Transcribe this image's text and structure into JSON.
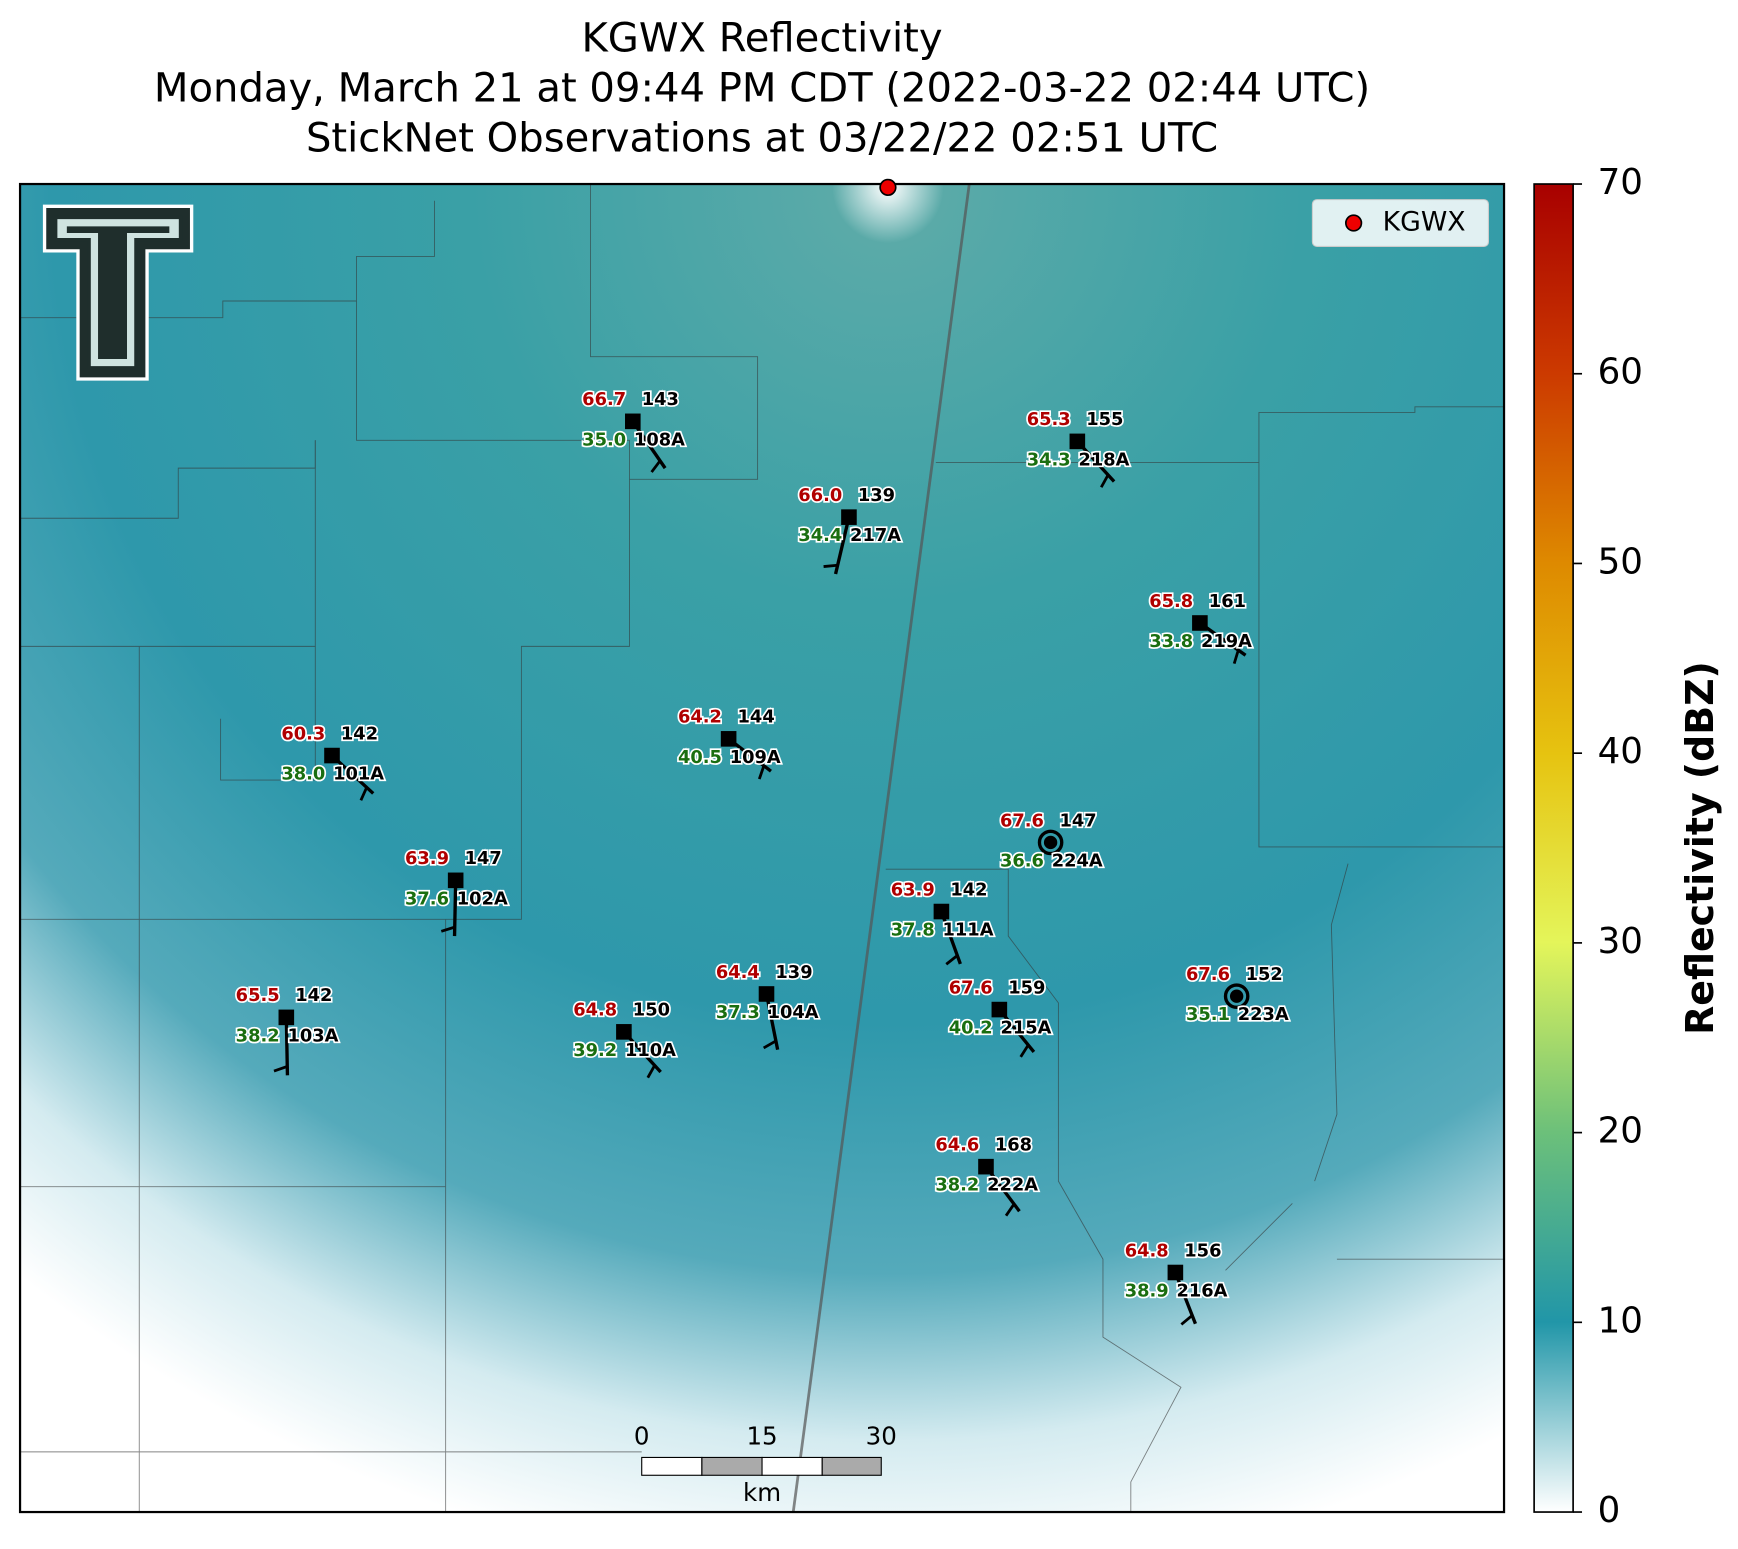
{
  "title": [
    "KGWX Reflectivity",
    "Monday, March 21 at 09:44 PM CDT (2022-03-22 02:44 UTC)",
    "StickNet Observations at 03/22/22 02:51 UTC"
  ],
  "legend": {
    "label": "KGWX"
  },
  "stations": [
    {
      "id": "108A",
      "temperature": "66.7",
      "pressure": "143",
      "dewpoint": "35.0"
    },
    {
      "id": "218A",
      "temperature": "65.3",
      "pressure": "155",
      "dewpoint": "34.3"
    },
    {
      "id": "217A",
      "temperature": "66.0",
      "pressure": "139",
      "dewpoint": "34.4"
    },
    {
      "id": "219A",
      "temperature": "65.8",
      "pressure": "161",
      "dewpoint": "33.8"
    },
    {
      "id": "109A",
      "temperature": "64.2",
      "pressure": "144",
      "dewpoint": "40.5"
    },
    {
      "id": "101A",
      "temperature": "60.3",
      "pressure": "142",
      "dewpoint": "38.0"
    },
    {
      "id": "224A",
      "temperature": "67.6",
      "pressure": "147",
      "dewpoint": "36.6"
    },
    {
      "id": "102A",
      "temperature": "63.9",
      "pressure": "147",
      "dewpoint": "37.6"
    },
    {
      "id": "111A",
      "temperature": "63.9",
      "pressure": "142",
      "dewpoint": "37.8"
    },
    {
      "id": "223A",
      "temperature": "67.6",
      "pressure": "152",
      "dewpoint": "35.1"
    },
    {
      "id": "215A",
      "temperature": "67.6",
      "pressure": "159",
      "dewpoint": "40.2"
    },
    {
      "id": "104A",
      "temperature": "64.4",
      "pressure": "139",
      "dewpoint": "37.3"
    },
    {
      "id": "110A",
      "temperature": "64.8",
      "pressure": "150",
      "dewpoint": "39.2"
    },
    {
      "id": "103A",
      "temperature": "65.5",
      "pressure": "142",
      "dewpoint": "38.2"
    },
    {
      "id": "222A",
      "temperature": "64.6",
      "pressure": "168",
      "dewpoint": "38.2"
    },
    {
      "id": "216A",
      "temperature": "64.8",
      "pressure": "156",
      "dewpoint": "38.9"
    }
  ],
  "scale_bar": {
    "ticks": [
      "0",
      "15",
      "30"
    ],
    "unit": "km"
  },
  "colorbar": {
    "label": "Reflectivity (dBZ)",
    "lim": [
      0,
      70
    ],
    "ticks": [
      0,
      10,
      20,
      30,
      40,
      50,
      60,
      70
    ]
  }
}
